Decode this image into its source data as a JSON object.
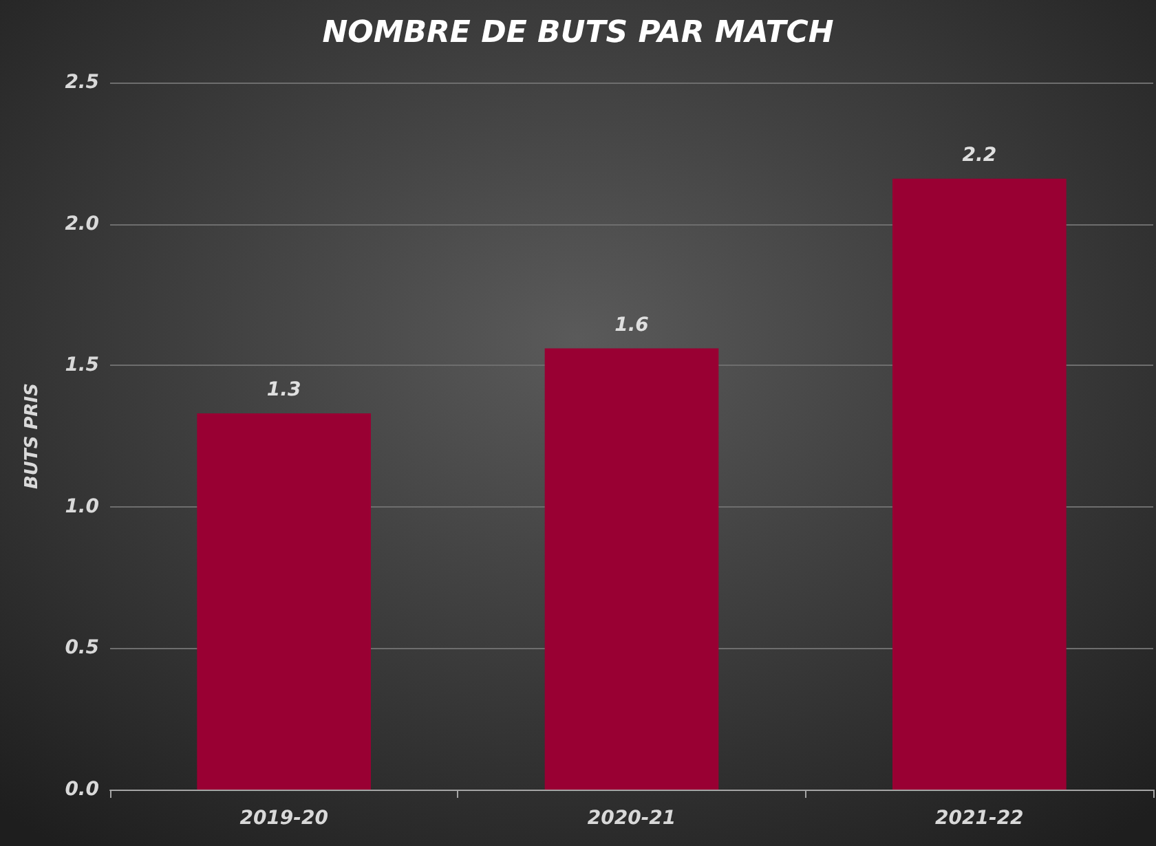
{
  "chart_data": {
    "type": "bar",
    "title": "NOMBRE DE BUTS PAR MATCH",
    "ylabel": "BUTS PRIS",
    "categories": [
      "2019-20",
      "2020-21",
      "2021-22"
    ],
    "values": [
      1.33,
      1.56,
      2.16
    ],
    "value_labels": [
      "1.3",
      "1.6",
      "2.2"
    ],
    "color": "#990033",
    "ylim": [
      0,
      2.5
    ],
    "yticks": [
      {
        "value": 0,
        "label": "0.0"
      },
      {
        "value": 0.5,
        "label": "0.5"
      },
      {
        "value": 1,
        "label": "1.0"
      },
      {
        "value": 1.5,
        "label": "1.5"
      },
      {
        "value": 2,
        "label": "2.0"
      },
      {
        "value": 2.5,
        "label": "2.5"
      }
    ],
    "grid": "y"
  }
}
